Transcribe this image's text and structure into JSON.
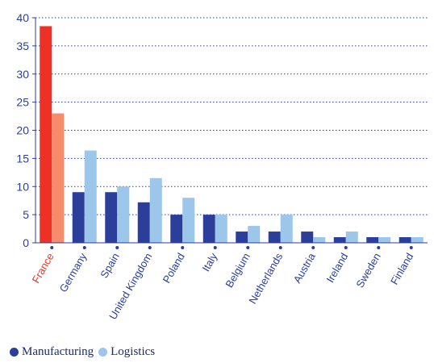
{
  "chart_data": {
    "type": "bar",
    "categories": [
      "France",
      "Germany",
      "Spain",
      "United Kingdom",
      "Poland",
      "Italy",
      "Belgium",
      "Netherlands",
      "Austria",
      "Ireland",
      "Sweden",
      "Finland"
    ],
    "highlight_category": "France",
    "series": [
      {
        "name": "Manufacturing",
        "values": [
          38.5,
          9,
          9,
          7.2,
          5,
          5,
          2,
          2,
          2,
          1,
          1,
          1
        ],
        "color": "#2b3f9a",
        "highlight_color": "#ee3124"
      },
      {
        "name": "Logistics",
        "values": [
          23,
          16.4,
          10,
          11.5,
          8,
          5,
          3,
          5,
          1,
          2,
          1,
          1
        ],
        "color": "#9cc6ea",
        "highlight_color": "#f88b6b"
      }
    ],
    "yticks": [
      0,
      5,
      10,
      15,
      20,
      25,
      30,
      35,
      40
    ],
    "ylim": [
      0,
      40
    ],
    "grid": "dotted horizontal",
    "legend_position": "bottom-left",
    "axis_color": "#2b3f9a",
    "highlight_label_color": "#ee3124"
  }
}
